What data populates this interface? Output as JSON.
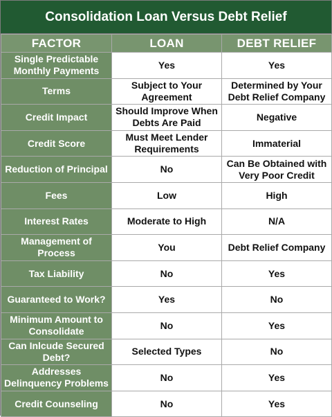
{
  "title": "Consolidation Loan Versus Debt Relief",
  "headers": {
    "factor": "FACTOR",
    "loan": "LOAN",
    "relief": "DEBT RELIEF"
  },
  "rows": [
    {
      "factor": "Single Predictable Monthly Payments",
      "loan": "Yes",
      "relief": "Yes"
    },
    {
      "factor": "Terms",
      "loan": "Subject to Your Agreement",
      "relief": "Determined by Your Debt Relief Company"
    },
    {
      "factor": "Credit Impact",
      "loan": "Should Improve When Debts Are Paid",
      "relief": "Negative"
    },
    {
      "factor": "Credit Score",
      "loan": "Must Meet Lender Requirements",
      "relief": "Immaterial"
    },
    {
      "factor": "Reduction of Principal",
      "loan": "No",
      "relief": "Can Be Obtained with Very Poor Credit"
    },
    {
      "factor": "Fees",
      "loan": "Low",
      "relief": "High"
    },
    {
      "factor": "Interest Rates",
      "loan": "Moderate to High",
      "relief": "N/A"
    },
    {
      "factor": "Management of Process",
      "loan": "You",
      "relief": "Debt Relief Company"
    },
    {
      "factor": "Tax Liability",
      "loan": "No",
      "relief": "Yes"
    },
    {
      "factor": "Guaranteed to Work?",
      "loan": "Yes",
      "relief": "No"
    },
    {
      "factor": "Minimum Amount to Consolidate",
      "loan": "No",
      "relief": "Yes"
    },
    {
      "factor": "Can Inlcude Secured Debt?",
      "loan": "Selected Types",
      "relief": "No"
    },
    {
      "factor": "Addresses Delinquency Problems",
      "loan": "No",
      "relief": "Yes"
    },
    {
      "factor": "Credit Counseling",
      "loan": "No",
      "relief": "Yes"
    }
  ],
  "colors": {
    "title_bg": "#215a32",
    "header_bg": "#78956f",
    "factor_bg": "#6f8e66",
    "value_bg": "#ffffff"
  }
}
